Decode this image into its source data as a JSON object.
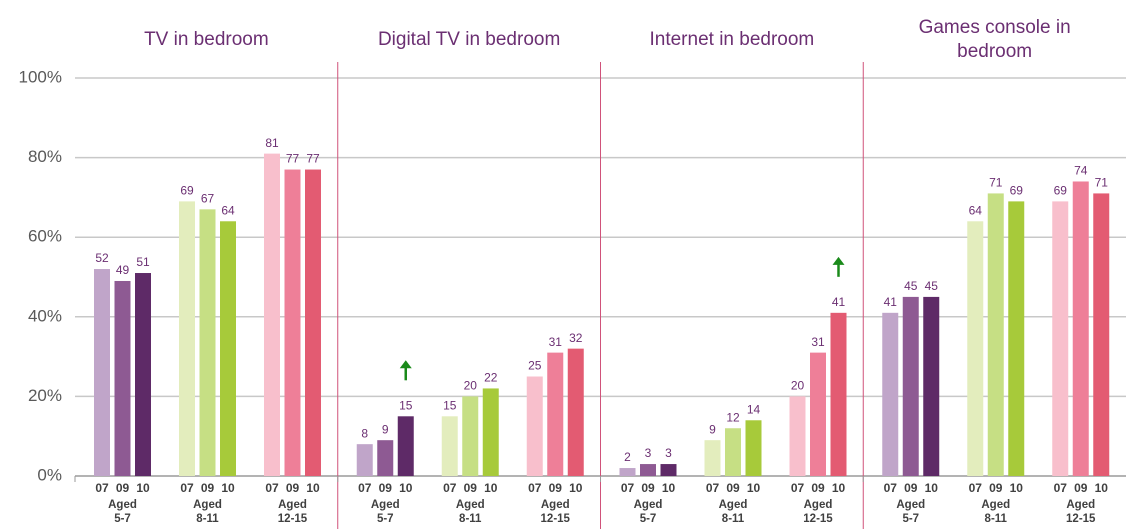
{
  "chart_data": {
    "type": "bar",
    "ylim": [
      0,
      100
    ],
    "yticks": [
      {
        "value": 0,
        "label": "0%"
      },
      {
        "value": 20,
        "label": "20%"
      },
      {
        "value": 40,
        "label": "40%"
      },
      {
        "value": 60,
        "label": "60%"
      },
      {
        "value": 80,
        "label": "80%"
      },
      {
        "value": 100,
        "label": "100%"
      }
    ],
    "grid": true,
    "years": [
      "07",
      "09",
      "10"
    ],
    "age_groups": [
      {
        "label_lines": [
          "Aged",
          "5-7"
        ],
        "colors": [
          "#c0a5c9",
          "#8e5a93",
          "#5e2a67"
        ]
      },
      {
        "label_lines": [
          "Aged",
          "8-11"
        ],
        "colors": [
          "#e3edbd",
          "#c6df84",
          "#a7ca3a"
        ]
      },
      {
        "label_lines": [
          "Aged",
          "12-15"
        ],
        "colors": [
          "#f8bfcc",
          "#ee7f98",
          "#e35b72"
        ]
      }
    ],
    "panels": [
      {
        "title_lines": [
          "TV in bedroom"
        ],
        "values": [
          [
            52,
            49,
            51
          ],
          [
            69,
            67,
            64
          ],
          [
            81,
            77,
            77
          ]
        ]
      },
      {
        "title_lines": [
          "Digital TV in bedroom"
        ],
        "values": [
          [
            8,
            9,
            15
          ],
          [
            15,
            20,
            22
          ],
          [
            25,
            31,
            32
          ]
        ],
        "increase_marker": {
          "age_group": 0,
          "year": 2
        }
      },
      {
        "title_lines": [
          "Internet in bedroom"
        ],
        "values": [
          [
            2,
            3,
            3
          ],
          [
            9,
            12,
            14
          ],
          [
            20,
            31,
            41
          ]
        ],
        "increase_marker": {
          "age_group": 2,
          "year": 2
        }
      },
      {
        "title_lines": [
          "Games console in",
          "bedroom"
        ],
        "values": [
          [
            41,
            45,
            45
          ],
          [
            64,
            71,
            69
          ],
          [
            69,
            74,
            71
          ]
        ]
      }
    ]
  }
}
